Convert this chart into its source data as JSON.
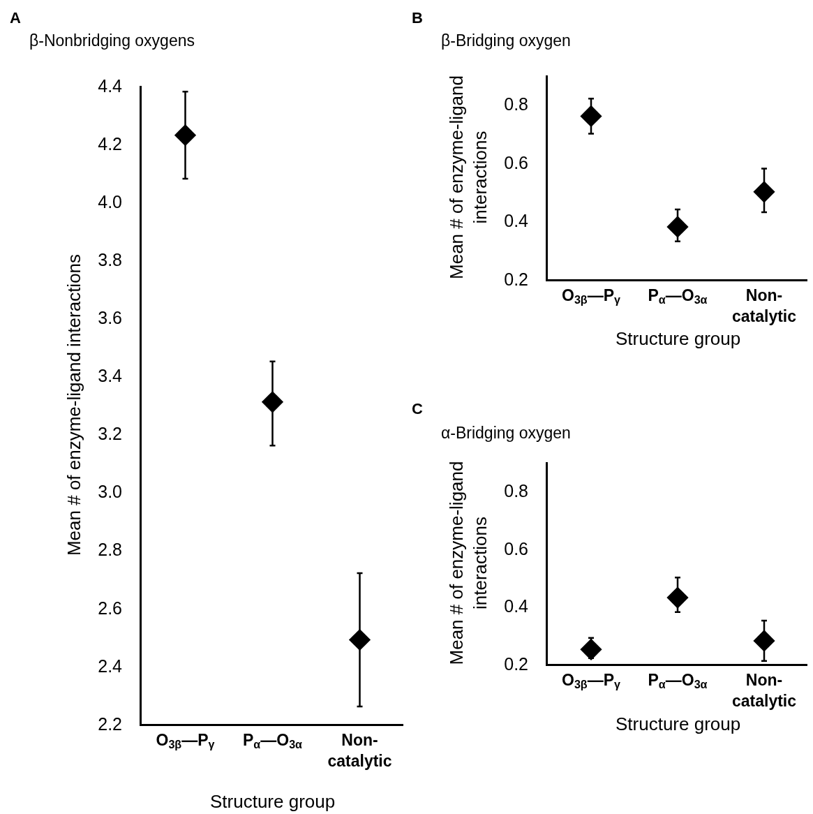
{
  "chart_data": [
    {
      "type": "scatter",
      "title": "β-Nonbridging oxygens",
      "annotations": [
        "A"
      ],
      "xlabel": "Structure group",
      "ylabel": "Mean # of enzyme-ligand interactions",
      "categories": [
        "O$_{3β}$—P$_{γ}$",
        "P$_{α}$—O$_{3α}$",
        "Non-catalytic"
      ],
      "series": [
        {
          "color": "#000000",
          "values": [
            4.23,
            3.31,
            2.49
          ],
          "errors": [
            [
              4.08,
              4.38
            ],
            [
              3.16,
              3.45
            ],
            [
              2.26,
              2.72
            ]
          ]
        }
      ],
      "ylim": [
        2.2,
        4.4
      ],
      "yticks": [
        2.2,
        2.4,
        2.6,
        2.8,
        {
          "value": 3.0,
          "label": "3.0"
        },
        3.2,
        3.4,
        3.6,
        3.8,
        {
          "value": 4.0,
          "label": "4.0"
        },
        4.2,
        4.4
      ],
      "marker": "diamond",
      "grid": false
    },
    {
      "type": "scatter",
      "title": "β-Bridging oxygen",
      "annotations": [
        "B"
      ],
      "xlabel": "Structure group",
      "ylabel": "Mean # of enzyme-ligand interactions",
      "categories": [
        "O$_{3β}$—P$_{γ}$",
        "P$_{α}$—O$_{3α}$",
        "Non-catalytic"
      ],
      "series": [
        {
          "color": "#000000",
          "values": [
            0.76,
            0.38,
            0.5
          ],
          "errors": [
            [
              0.7,
              0.82
            ],
            [
              0.33,
              0.44
            ],
            [
              0.43,
              0.58
            ]
          ]
        }
      ],
      "ylim": [
        0.2,
        0.9
      ],
      "yticks": [
        0.2,
        0.4,
        0.6,
        0.8
      ],
      "marker": "diamond",
      "grid": false
    },
    {
      "type": "scatter",
      "title": "α-Bridging oxygen",
      "annotations": [
        "C"
      ],
      "xlabel": "Structure group",
      "ylabel": "Mean # of enzyme-ligand interactions",
      "categories": [
        "O$_{3β}$—P$_{γ}$",
        "P$_{α}$—O$_{3α}$",
        "Non-catalytic"
      ],
      "series": [
        {
          "color": "#000000",
          "values": [
            0.25,
            0.43,
            0.28
          ],
          "errors": [
            [
              0.22,
              0.29
            ],
            [
              0.38,
              0.5
            ],
            [
              0.21,
              0.35
            ]
          ]
        }
      ],
      "ylim": [
        0.2,
        0.9
      ],
      "yticks": [
        0.2,
        0.4,
        0.6,
        0.8
      ],
      "marker": "diamond",
      "grid": false
    }
  ]
}
